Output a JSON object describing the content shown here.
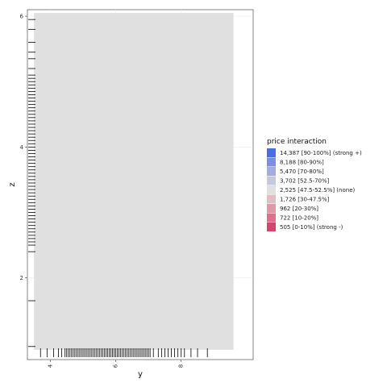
{
  "chart_data": {
    "type": "heatmap",
    "title": "",
    "xlabel": "y",
    "ylabel": "z",
    "xlim": [
      3.3,
      10.2
    ],
    "ylim": [
      0.75,
      6.1
    ],
    "x_ticks": [
      {
        "value": 4,
        "label": "4"
      },
      {
        "value": 6,
        "label": "6"
      },
      {
        "value": 8,
        "label": "8"
      }
    ],
    "y_ticks": [
      {
        "value": 2,
        "label": "2"
      },
      {
        "value": 4,
        "label": "4"
      },
      {
        "value": 6,
        "label": "6"
      }
    ],
    "tile_extent": {
      "x": [
        3.5,
        9.6
      ],
      "y": [
        0.9,
        6.05
      ]
    },
    "tile_color": "#e0e0e0",
    "grid": true,
    "x_rug": [
      3.7,
      3.9,
      4.1,
      4.25,
      4.35,
      4.45,
      4.5,
      4.55,
      4.6,
      4.65,
      4.7,
      4.75,
      4.8,
      4.85,
      4.9,
      4.95,
      5.0,
      5.05,
      5.1,
      5.15,
      5.2,
      5.25,
      5.3,
      5.35,
      5.4,
      5.45,
      5.5,
      5.55,
      5.6,
      5.65,
      5.7,
      5.75,
      5.8,
      5.85,
      5.9,
      5.95,
      6.0,
      6.05,
      6.1,
      6.15,
      6.2,
      6.25,
      6.3,
      6.35,
      6.4,
      6.45,
      6.5,
      6.55,
      6.6,
      6.65,
      6.7,
      6.75,
      6.8,
      6.85,
      6.9,
      6.95,
      7.0,
      7.05,
      7.15,
      7.3,
      7.4,
      7.5,
      7.6,
      7.7,
      7.8,
      7.9,
      8.0,
      8.1,
      8.3,
      8.5,
      8.8
    ],
    "y_rug": [
      0.95,
      1.65,
      2.4,
      2.5,
      2.55,
      2.6,
      2.65,
      2.7,
      2.75,
      2.8,
      2.85,
      2.9,
      2.95,
      3.0,
      3.05,
      3.1,
      3.15,
      3.2,
      3.25,
      3.3,
      3.35,
      3.4,
      3.45,
      3.5,
      3.55,
      3.6,
      3.65,
      3.7,
      3.75,
      3.8,
      3.85,
      3.9,
      3.95,
      4.0,
      4.05,
      4.1,
      4.15,
      4.2,
      4.25,
      4.3,
      4.35,
      4.4,
      4.45,
      4.5,
      4.55,
      4.6,
      4.65,
      4.7,
      4.75,
      4.8,
      4.85,
      4.9,
      4.95,
      5.0,
      5.05,
      5.1,
      5.2,
      5.35,
      5.45,
      5.6,
      5.8,
      5.95
    ],
    "legend": {
      "title": "price interaction",
      "position": "right",
      "items": [
        {
          "label": "14,387 [90-100%] (strong +)",
          "color": "#4a6ee0"
        },
        {
          "label": "8,188 [80-90%]",
          "color": "#7a8fe3"
        },
        {
          "label": "5,470 [70-80%]",
          "color": "#a2addf"
        },
        {
          "label": "3,702 [52.5-70%]",
          "color": "#c5c9df"
        },
        {
          "label": "2,525 [47.5-52.5%] (none)",
          "color": "#e0e0e0"
        },
        {
          "label": "1,726 [30-47.5%]",
          "color": "#e3bcc5"
        },
        {
          "label": "962 [20-30%]",
          "color": "#e297a9"
        },
        {
          "label": "722 [10-20%]",
          "color": "#de6f8d"
        },
        {
          "label": "505 [0-10%] (strong -)",
          "color": "#d4446f"
        }
      ]
    }
  }
}
